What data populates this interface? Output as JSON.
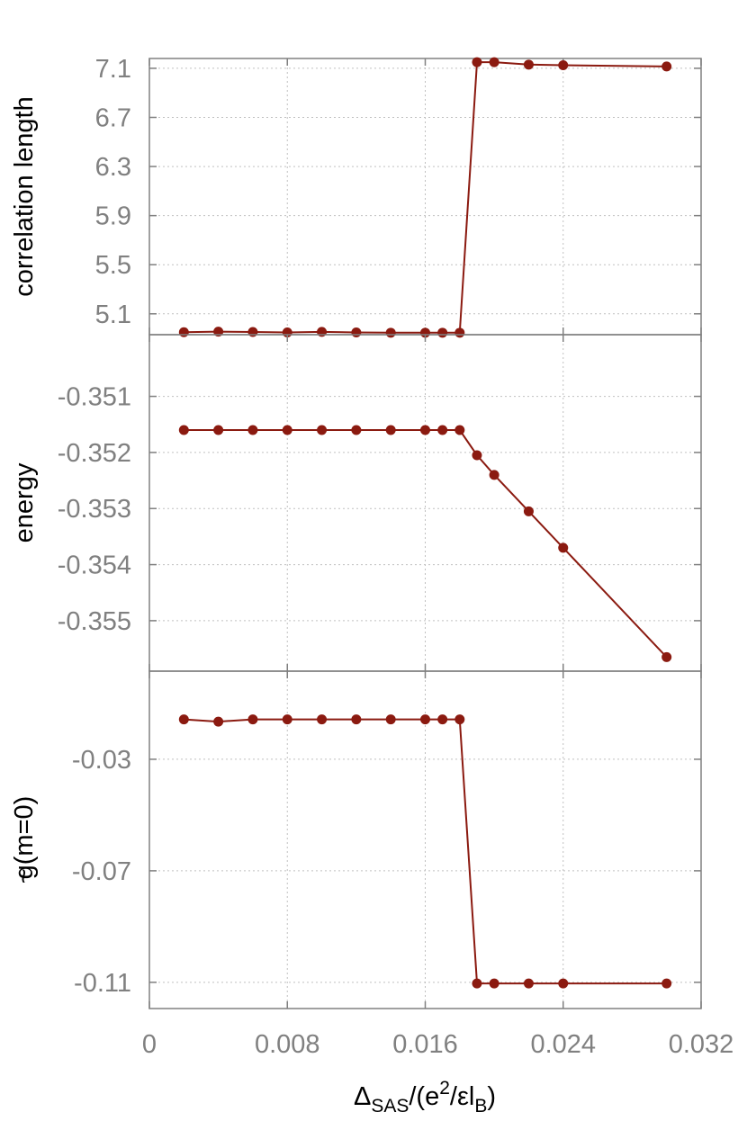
{
  "colors": {
    "series": "#8b1a10",
    "grid": "#c0c0c0",
    "axis": "#808080",
    "tick_text": "#808080",
    "label_text": "#000000"
  },
  "x_axis": {
    "label_main": "Δ",
    "label_sub": "SAS",
    "label_mid": "/(e",
    "label_sup": "2",
    "label_tail": "/εl",
    "label_sub2": "B",
    "label_end": ")",
    "xlim": [
      0,
      0.032
    ],
    "ticks": [
      {
        "value": 0,
        "label": "0"
      },
      {
        "value": 0.008,
        "label": "0.008"
      },
      {
        "value": 0.016,
        "label": "0.016"
      },
      {
        "value": 0.024,
        "label": "0.024"
      },
      {
        "value": 0.032,
        "label": "0.032"
      }
    ]
  },
  "chart_data": [
    {
      "type": "line",
      "ylabel": "correlation length",
      "ylim": [
        4.93,
        7.18
      ],
      "yticks": [
        {
          "value": 5.1,
          "label": "5.1"
        },
        {
          "value": 5.5,
          "label": "5.5"
        },
        {
          "value": 5.9,
          "label": "5.9"
        },
        {
          "value": 6.3,
          "label": "6.3"
        },
        {
          "value": 6.7,
          "label": "6.7"
        },
        {
          "value": 7.1,
          "label": "7.1"
        }
      ],
      "grid": true,
      "x": [
        0.002,
        0.004,
        0.006,
        0.008,
        0.01,
        0.012,
        0.014,
        0.016,
        0.017,
        0.018,
        0.019,
        0.02,
        0.022,
        0.024,
        0.03
      ],
      "y": [
        4.95,
        4.955,
        4.952,
        4.948,
        4.953,
        4.948,
        4.946,
        4.946,
        4.946,
        4.946,
        7.15,
        7.15,
        7.13,
        7.125,
        7.115
      ]
    },
    {
      "type": "line",
      "ylabel": "energy",
      "ylim": [
        -0.3559,
        -0.3499
      ],
      "yticks": [
        {
          "value": -0.351,
          "label": "-0.351"
        },
        {
          "value": -0.352,
          "label": "-0.352"
        },
        {
          "value": -0.353,
          "label": "-0.353"
        },
        {
          "value": -0.354,
          "label": "-0.354"
        },
        {
          "value": -0.355,
          "label": "-0.355"
        }
      ],
      "grid": true,
      "x": [
        0.002,
        0.004,
        0.006,
        0.008,
        0.01,
        0.012,
        0.014,
        0.016,
        0.017,
        0.018,
        0.019,
        0.02,
        0.022,
        0.024,
        0.03
      ],
      "y": [
        -0.3516,
        -0.3516,
        -0.3516,
        -0.3516,
        -0.3516,
        -0.3516,
        -0.3516,
        -0.3516,
        -0.3516,
        -0.3516,
        -0.35205,
        -0.3524,
        -0.35305,
        -0.3537,
        -0.35565
      ]
    },
    {
      "type": "line",
      "ylabel": "g(m=0)",
      "ylabel_accent": "~",
      "ylim": [
        -0.1194,
        0.0016
      ],
      "yticks": [
        {
          "value": -0.03,
          "label": "-0.03"
        },
        {
          "value": -0.07,
          "label": "-0.07"
        },
        {
          "value": -0.11,
          "label": "-0.11"
        }
      ],
      "grid": true,
      "x": [
        0.002,
        0.004,
        0.006,
        0.008,
        0.01,
        0.012,
        0.014,
        0.016,
        0.017,
        0.018,
        0.019,
        0.02,
        0.022,
        0.024,
        0.03
      ],
      "y": [
        -0.0157,
        -0.0165,
        -0.0157,
        -0.0157,
        -0.0157,
        -0.0157,
        -0.0157,
        -0.0157,
        -0.0157,
        -0.0157,
        -0.1104,
        -0.1104,
        -0.1104,
        -0.1104,
        -0.1104
      ]
    }
  ]
}
